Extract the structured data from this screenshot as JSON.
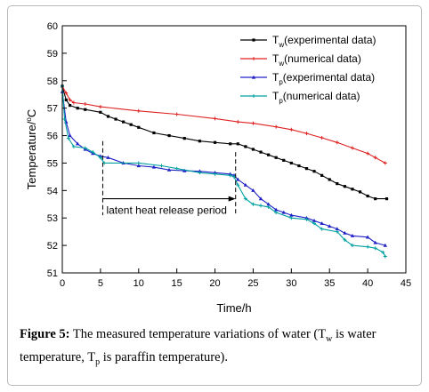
{
  "chart_data": {
    "type": "line",
    "xlabel": "Time/h",
    "ylabel_main": "Temperature/",
    "ylabel_sup": "o",
    "ylabel_unit": "C",
    "xlim": [
      0,
      45
    ],
    "ylim": [
      51,
      60
    ],
    "xticks": [
      0,
      5,
      10,
      15,
      20,
      25,
      30,
      35,
      40,
      45
    ],
    "yticks": [
      51,
      52,
      53,
      54,
      55,
      56,
      57,
      58,
      59,
      60
    ],
    "grid": false,
    "legend_position": "top-right",
    "series": [
      {
        "id": "tw-exp",
        "base": "T",
        "sub": "w",
        "name": "(experimental data)",
        "color": "#000000",
        "marker": "square",
        "points": [
          [
            0,
            57.8
          ],
          [
            0.5,
            57.3
          ],
          [
            1,
            57.1
          ],
          [
            2,
            57.0
          ],
          [
            3,
            56.95
          ],
          [
            5,
            56.85
          ],
          [
            6,
            56.7
          ],
          [
            7,
            56.6
          ],
          [
            8,
            56.5
          ],
          [
            9,
            56.4
          ],
          [
            10,
            56.3
          ],
          [
            12,
            56.1
          ],
          [
            14,
            56.0
          ],
          [
            16,
            55.9
          ],
          [
            18,
            55.8
          ],
          [
            20,
            55.75
          ],
          [
            22,
            55.7
          ],
          [
            23,
            55.7
          ],
          [
            24,
            55.6
          ],
          [
            25,
            55.5
          ],
          [
            26,
            55.4
          ],
          [
            27,
            55.3
          ],
          [
            28,
            55.2
          ],
          [
            29,
            55.1
          ],
          [
            30,
            55.0
          ],
          [
            31,
            54.9
          ],
          [
            32,
            54.8
          ],
          [
            33,
            54.7
          ],
          [
            34,
            54.55
          ],
          [
            35,
            54.4
          ],
          [
            36,
            54.25
          ],
          [
            37,
            54.15
          ],
          [
            38,
            54.05
          ],
          [
            39,
            53.95
          ],
          [
            40,
            53.8
          ],
          [
            41,
            53.7
          ],
          [
            42.5,
            53.7
          ]
        ]
      },
      {
        "id": "tw-num",
        "base": "T",
        "sub": "w",
        "name": "(numerical data)",
        "color": "#e02020",
        "marker": "plus",
        "points": [
          [
            0,
            57.8
          ],
          [
            0.5,
            57.55
          ],
          [
            1,
            57.3
          ],
          [
            1.5,
            57.2
          ],
          [
            3,
            57.15
          ],
          [
            5,
            57.05
          ],
          [
            10,
            56.9
          ],
          [
            15,
            56.78
          ],
          [
            20,
            56.62
          ],
          [
            23,
            56.5
          ],
          [
            25,
            56.45
          ],
          [
            28,
            56.32
          ],
          [
            30,
            56.22
          ],
          [
            32,
            56.08
          ],
          [
            34,
            55.92
          ],
          [
            36,
            55.75
          ],
          [
            38,
            55.55
          ],
          [
            40,
            55.35
          ],
          [
            41,
            55.2
          ],
          [
            42.3,
            55.0
          ]
        ]
      },
      {
        "id": "tp-exp",
        "base": "T",
        "sub": "p",
        "name": "(experimental data)",
        "color": "#2020c8",
        "marker": "triangle",
        "points": [
          [
            0,
            57.6
          ],
          [
            0.5,
            56.5
          ],
          [
            1,
            56.0
          ],
          [
            2,
            55.7
          ],
          [
            3,
            55.5
          ],
          [
            4,
            55.35
          ],
          [
            5,
            55.25
          ],
          [
            6,
            55.2
          ],
          [
            8,
            55.0
          ],
          [
            10,
            54.9
          ],
          [
            12,
            54.85
          ],
          [
            14,
            54.75
          ],
          [
            16,
            54.72
          ],
          [
            18,
            54.7
          ],
          [
            20,
            54.65
          ],
          [
            22,
            54.6
          ],
          [
            22.5,
            54.55
          ],
          [
            23,
            54.4
          ],
          [
            24,
            54.2
          ],
          [
            25,
            54.0
          ],
          [
            26,
            53.7
          ],
          [
            27,
            53.5
          ],
          [
            28,
            53.3
          ],
          [
            29,
            53.2
          ],
          [
            30,
            53.1
          ],
          [
            32,
            53.0
          ],
          [
            33,
            52.9
          ],
          [
            34,
            52.8
          ],
          [
            35,
            52.7
          ],
          [
            36,
            52.6
          ],
          [
            37,
            52.45
          ],
          [
            38,
            52.35
          ],
          [
            40,
            52.3
          ],
          [
            41,
            52.1
          ],
          [
            42.3,
            52.0
          ]
        ]
      },
      {
        "id": "tp-num",
        "base": "T",
        "sub": "p",
        "name": "(numerical data)",
        "color": "#00a0a0",
        "marker": "plus",
        "points": [
          [
            0,
            57.8
          ],
          [
            0.3,
            56.6
          ],
          [
            0.8,
            55.9
          ],
          [
            1.5,
            55.6
          ],
          [
            3,
            55.55
          ],
          [
            4,
            55.4
          ],
          [
            5,
            55.2
          ],
          [
            5.5,
            55.0
          ],
          [
            10,
            55.0
          ],
          [
            13,
            54.9
          ],
          [
            15,
            54.8
          ],
          [
            18,
            54.65
          ],
          [
            20,
            54.6
          ],
          [
            22,
            54.55
          ],
          [
            22.5,
            54.5
          ],
          [
            23,
            54.2
          ],
          [
            24,
            53.7
          ],
          [
            25,
            53.5
          ],
          [
            26,
            53.45
          ],
          [
            27,
            53.4
          ],
          [
            28,
            53.2
          ],
          [
            30,
            53.0
          ],
          [
            32,
            52.95
          ],
          [
            33,
            52.8
          ],
          [
            34,
            52.6
          ],
          [
            36,
            52.5
          ],
          [
            37,
            52.2
          ],
          [
            38,
            52.0
          ],
          [
            40,
            51.95
          ],
          [
            41,
            51.9
          ],
          [
            42,
            51.75
          ],
          [
            42.3,
            51.6
          ]
        ]
      }
    ],
    "annotation": {
      "text": "latent heat release period",
      "x_start": 5.3,
      "x_end": 22.7,
      "y_arrow": 53.7
    }
  },
  "caption": {
    "label": "Figure 5:",
    "t1": " The measured temperature variations of water (T",
    "s1": "w",
    "t2": " is water temperature, T",
    "s2": "p",
    "t3": " is paraffin temperature)."
  }
}
